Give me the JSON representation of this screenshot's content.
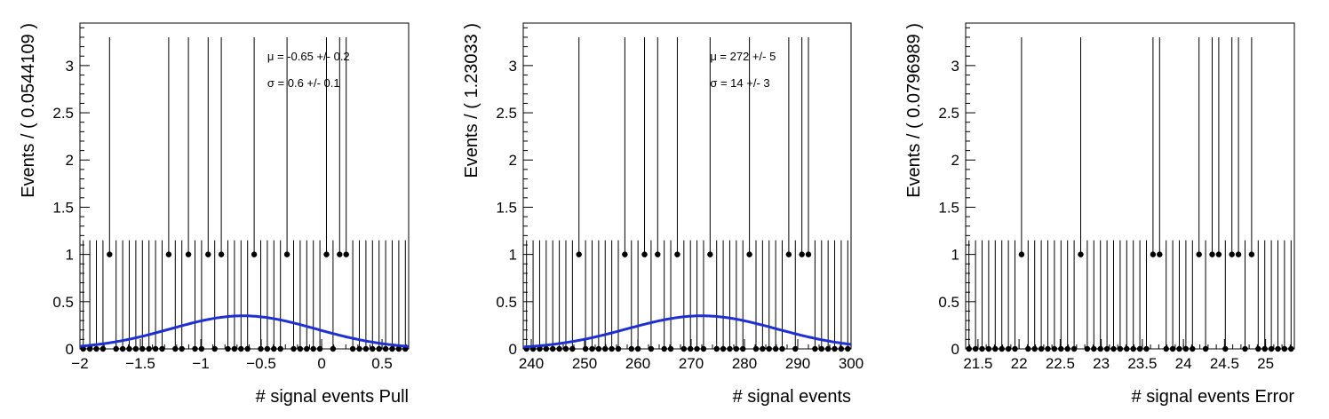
{
  "chart_data": [
    {
      "type": "scatter",
      "xlabel": "# signal events Pull",
      "ylabel": "Events / ( 0.0544109 )",
      "xlim": [
        -2.0,
        0.72
      ],
      "ylim": [
        0,
        3.45
      ],
      "xticks": [
        -2,
        -1.5,
        -1,
        -0.5,
        0,
        0.5
      ],
      "xtick_labels": [
        "−2",
        "−1.5",
        "−1",
        "−0.5",
        "0",
        "0.5"
      ],
      "yticks": [
        0,
        0.5,
        1,
        1.5,
        2,
        2.5,
        3
      ],
      "ytick_labels": [
        "0",
        "0.5",
        "1",
        "1.5",
        "2",
        "2.5",
        "3"
      ],
      "nbins": 50,
      "bin_width": 0.0544109,
      "ones": [
        -1.75,
        -1.26,
        -1.09,
        -0.93,
        -0.81,
        -0.54,
        -0.27,
        0.03,
        0.15,
        0.19
      ],
      "fit": {
        "mu": -0.65,
        "sigma": 0.6,
        "peak": 0.35
      },
      "annotations": [
        "μ = -0.65 +/- 0.2",
        "σ =  0.6 +/- 0.1"
      ]
    },
    {
      "type": "scatter",
      "xlabel": "# signal events",
      "ylabel": "Events / ( 1.23033 )",
      "xlim": [
        238.5,
        300.0
      ],
      "ylim": [
        0,
        3.45
      ],
      "xticks": [
        240,
        250,
        260,
        270,
        280,
        290,
        300
      ],
      "xtick_labels": [
        "240",
        "250",
        "260",
        "270",
        "280",
        "290",
        "300"
      ],
      "yticks": [
        0,
        0.5,
        1,
        1.5,
        2,
        2.5,
        3
      ],
      "ytick_labels": [
        "0",
        "0.5",
        "1",
        "1.5",
        "2",
        "2.5",
        "3"
      ],
      "nbins": 50,
      "bin_width": 1.23033,
      "ones": [
        248.4,
        257.0,
        260.7,
        263.2,
        266.9,
        273.0,
        280.4,
        288.0,
        290.5,
        291.7
      ],
      "fit": {
        "mu": 272,
        "sigma": 14,
        "peak": 0.35
      },
      "annotations": [
        "μ =  272 +/- 5",
        "σ =  14 +/- 3"
      ]
    },
    {
      "type": "scatter",
      "xlabel": "# signal events Error",
      "ylabel": "Events / ( 0.0796989 )",
      "xlim": [
        21.35,
        25.35
      ],
      "ylim": [
        0,
        3.45
      ],
      "xticks": [
        21.5,
        22,
        22.5,
        23,
        23.5,
        24,
        24.5,
        25
      ],
      "xtick_labels": [
        "21.5",
        "22",
        "22.5",
        "23",
        "23.5",
        "24",
        "24.5",
        "25"
      ],
      "yticks": [
        0,
        0.5,
        1,
        1.5,
        2,
        2.5,
        3
      ],
      "ytick_labels": [
        "0",
        "0.5",
        "1",
        "1.5",
        "2",
        "2.5",
        "3"
      ],
      "nbins": 50,
      "bin_width": 0.0796989,
      "ones": [
        22.0,
        22.73,
        23.6,
        23.68,
        24.18,
        24.34,
        24.42,
        24.58,
        24.66,
        24.82
      ],
      "fit": null,
      "annotations": []
    }
  ],
  "colors": {
    "fit_line": "#1f2fd1",
    "points": "#000000",
    "axes": "#000000"
  }
}
